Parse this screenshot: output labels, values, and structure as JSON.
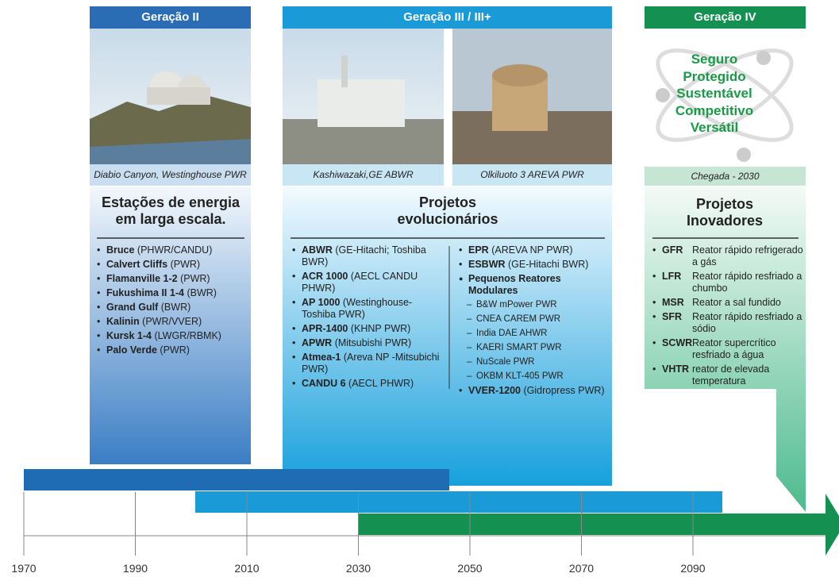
{
  "gen2": {
    "header": "Geração II",
    "caption": "Diabio Canyon, Westinghouse PWR",
    "title": "Estações de energia em larga escala.",
    "items": [
      {
        "name": "Bruce",
        "detail": "(PHWR/CANDU)"
      },
      {
        "name": "Calvert Cliffs",
        "detail": "(PWR)"
      },
      {
        "name": "Flamanville 1-2",
        "detail": "(PWR)"
      },
      {
        "name": "Fukushima II 1-4",
        "detail": "(BWR)"
      },
      {
        "name": "Grand Gulf",
        "detail": "(BWR)"
      },
      {
        "name": "Kalinin",
        "detail": "(PWR/VVER)"
      },
      {
        "name": "Kursk 1-4",
        "detail": "(LWGR/RBMK)"
      },
      {
        "name": "Palo Verde",
        "detail": "(PWR)"
      }
    ]
  },
  "gen3": {
    "header": "Geração III / III+",
    "captions": [
      "Kashiwazaki,GE ABWR",
      "Olkiluoto 3 AREVA PWR"
    ],
    "title": "Projetos evolucionários",
    "left_items": [
      {
        "name": "ABWR",
        "detail": "(GE-Hitachi; Toshiba BWR)"
      },
      {
        "name": "ACR 1000",
        "detail": "(AECL CANDU PHWR)"
      },
      {
        "name": "AP 1000",
        "detail": "(Westinghouse-Toshiba PWR)"
      },
      {
        "name": "APR-1400",
        "detail": "(KHNP PWR)"
      },
      {
        "name": "APWR",
        "detail": "(Mitsubishi PWR)"
      },
      {
        "name": "Atmea-1",
        "detail": "(Areva NP -Mitsubichi PWR)"
      },
      {
        "name": "CANDU 6",
        "detail": "(AECL PHWR)"
      }
    ],
    "right_items": [
      {
        "name": "EPR",
        "detail": "(AREVA NP PWR)"
      },
      {
        "name": "ESBWR",
        "detail": "(GE-Hitachi BWR)"
      }
    ],
    "smr_title": "Pequenos Reatores Modulares",
    "smr_items": [
      "B&W mPower PWR",
      "CNEA CAREM PWR",
      "India DAE AHWR",
      "KAERI SMART PWR",
      "NuScale PWR",
      "OKBM KLT-405 PWR"
    ],
    "last_item": {
      "name": "VVER-1200",
      "detail": "(Gidropress PWR)"
    }
  },
  "gen4": {
    "header": "Geração IV",
    "qualities": [
      "Seguro",
      "Protegido",
      "Sustentável",
      "Competitivo",
      "Versátil"
    ],
    "caption": "Chegada - 2030",
    "title": "Projetos Inovadores",
    "items": [
      {
        "code": "GFR",
        "desc": "Reator rápido refrigerado a gás"
      },
      {
        "code": "LFR",
        "desc": "Reator rápido resfriado a chumbo"
      },
      {
        "code": "MSR",
        "desc": "Reator a sal fundido"
      },
      {
        "code": "SFR",
        "desc": "Reator rápido resfriado a sódio"
      },
      {
        "code": "SCWR",
        "desc": "Reator supercrítico resfriado a água"
      },
      {
        "code": "VHTR",
        "desc": "reator de elevada temperatura"
      }
    ]
  },
  "timeline": {
    "years": [
      "1970",
      "1990",
      "2010",
      "2030",
      "2050",
      "2070",
      "2090"
    ]
  }
}
